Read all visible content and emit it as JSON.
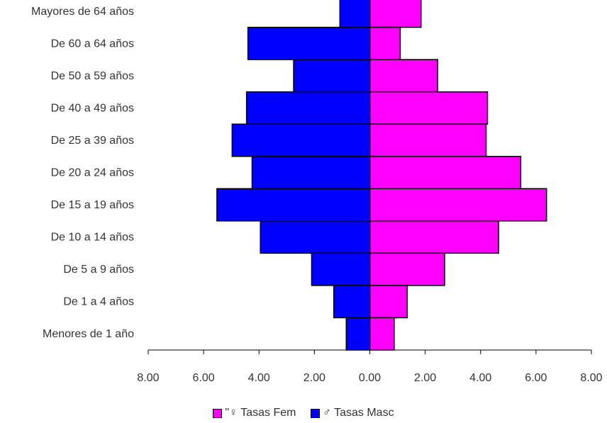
{
  "chart_data": {
    "type": "bar",
    "orientation": "horizontal-population-pyramid",
    "categories": [
      "Mayores de 64 años",
      "De 60 a 64 años",
      "De 50 a 59 años",
      "De 40 a 49 años",
      "De 25 a 39 años",
      "De 20 a 24 años",
      "De 15 a 19 años",
      "De 10 a 14 años",
      "De 5 a 9 años",
      "De 1 a 4 años",
      "Menores de 1 año"
    ],
    "series": [
      {
        "name": "\"♀ Tasas Fem",
        "color": "#ff00ff",
        "side": "right",
        "values": [
          1.85,
          1.1,
          2.45,
          4.25,
          4.2,
          5.45,
          6.38,
          4.65,
          2.7,
          1.35,
          0.88
        ]
      },
      {
        "name": "♂ Tasas Masc",
        "color": "#0000ff",
        "side": "left",
        "values": [
          1.08,
          4.4,
          2.75,
          4.45,
          4.97,
          4.25,
          5.52,
          3.95,
          2.1,
          1.3,
          0.85
        ]
      }
    ],
    "xticks": [
      "8.00",
      "6.00",
      "4.00",
      "2.00",
      "0.00",
      "2.00",
      "4.00",
      "6.00",
      "8.00"
    ],
    "xlim": [
      -8,
      8
    ],
    "title": "",
    "xlabel": "",
    "ylabel": "",
    "grid": false,
    "legend_position": "bottom"
  }
}
